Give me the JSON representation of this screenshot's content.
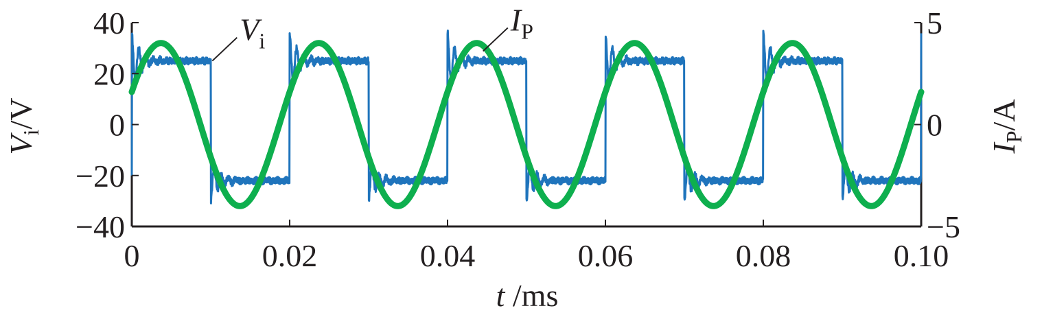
{
  "chart_data": {
    "type": "line",
    "x_axis": {
      "label_var": "t",
      "label_unit": " /ms",
      "range": [
        0,
        0.1
      ],
      "ticks": [
        0,
        0.02,
        0.04,
        0.06,
        0.08,
        0.1
      ],
      "tick_labels": [
        "0",
        "0.02",
        "0.04",
        "0.06",
        "0.08",
        "0.10"
      ]
    },
    "y_axis_left": {
      "label_var": "V",
      "label_sub": "i",
      "label_unit": "/V",
      "range": [
        -40,
        40
      ],
      "ticks": [
        -40,
        -20,
        0,
        20,
        40
      ],
      "tick_labels": [
        "−40",
        "−20",
        "0",
        "20",
        "40"
      ]
    },
    "y_axis_right": {
      "label_var": "I",
      "label_sub": "P",
      "label_unit": "/A",
      "range": [
        -5,
        5
      ],
      "ticks": [
        -5,
        0,
        5
      ],
      "tick_labels": [
        "−5",
        "0",
        "5"
      ]
    },
    "series": [
      {
        "axis": "left",
        "color": "#1f74bc",
        "kind": "square-wave",
        "period": 0.02,
        "high": 25,
        "low": -22,
        "rise_overshoot": 36,
        "fall_undershoot": -30,
        "rising_edges": [
          0,
          0.02,
          0.04,
          0.06,
          0.08
        ],
        "falling_edges": [
          0.01,
          0.03,
          0.05,
          0.07,
          0.09
        ]
      },
      {
        "axis": "right",
        "color": "#0eaf4e",
        "kind": "sine",
        "period": 0.02,
        "amplitude": 4.0,
        "offset": 0,
        "value_at_0": 1.6,
        "peaks_at": [
          0.004,
          0.024,
          0.044,
          0.064,
          0.084
        ],
        "troughs_at": [
          0.014,
          0.034,
          0.054,
          0.074,
          0.094
        ]
      }
    ],
    "annotations": [
      {
        "var": "V",
        "sub": "i",
        "series": 0,
        "points_to": [
          0.0102,
          25
        ]
      },
      {
        "var": "I",
        "sub": "P",
        "series": 1,
        "points_to": [
          0.0445,
          3.6
        ]
      }
    ],
    "grid": false,
    "legend": "none"
  }
}
